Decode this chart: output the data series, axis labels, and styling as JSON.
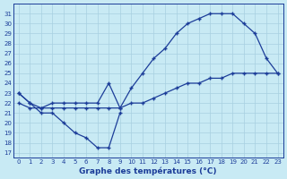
{
  "title": "Graphe des températures (°C)",
  "line_dip": {
    "x": [
      0,
      1,
      2,
      3,
      4,
      5,
      6,
      7,
      8,
      9
    ],
    "y": [
      23,
      22,
      21,
      21,
      20,
      19,
      18.5,
      17.5,
      17.5,
      21.0
    ]
  },
  "line_arc": {
    "x": [
      0,
      1,
      2,
      3,
      4,
      5,
      6,
      7,
      8,
      9,
      10,
      11,
      12,
      13,
      14,
      15,
      16,
      17,
      18,
      19,
      20,
      21,
      22,
      23
    ],
    "y": [
      23,
      22,
      21.5,
      22,
      22,
      22,
      22,
      22,
      24,
      21.5,
      23.5,
      25,
      26.5,
      27.5,
      29,
      30,
      30.5,
      31,
      31,
      31,
      30,
      29,
      26.5,
      25
    ]
  },
  "line_diag": {
    "x": [
      0,
      1,
      2,
      3,
      4,
      5,
      6,
      7,
      8,
      9,
      10,
      11,
      12,
      13,
      14,
      15,
      16,
      17,
      18,
      19,
      20,
      21,
      22,
      23
    ],
    "y": [
      22,
      21.5,
      21.5,
      21.5,
      21.5,
      21.5,
      21.5,
      21.5,
      21.5,
      21.5,
      22,
      22,
      22.5,
      23,
      23.5,
      24,
      24,
      24.5,
      24.5,
      25,
      25,
      25,
      25,
      25
    ]
  },
  "ylim_min": 16.5,
  "ylim_max": 32.0,
  "ytick_min": 17,
  "ytick_max": 31,
  "xtick_min": 0,
  "xtick_max": 23,
  "line_color": "#1c3d99",
  "bg_color": "#c8eaf4",
  "grid_color": "#a8d0e0",
  "marker": "+",
  "markersize": 3.5,
  "linewidth": 0.9,
  "tick_fontsize": 5.0,
  "xlabel_fontsize": 6.5
}
